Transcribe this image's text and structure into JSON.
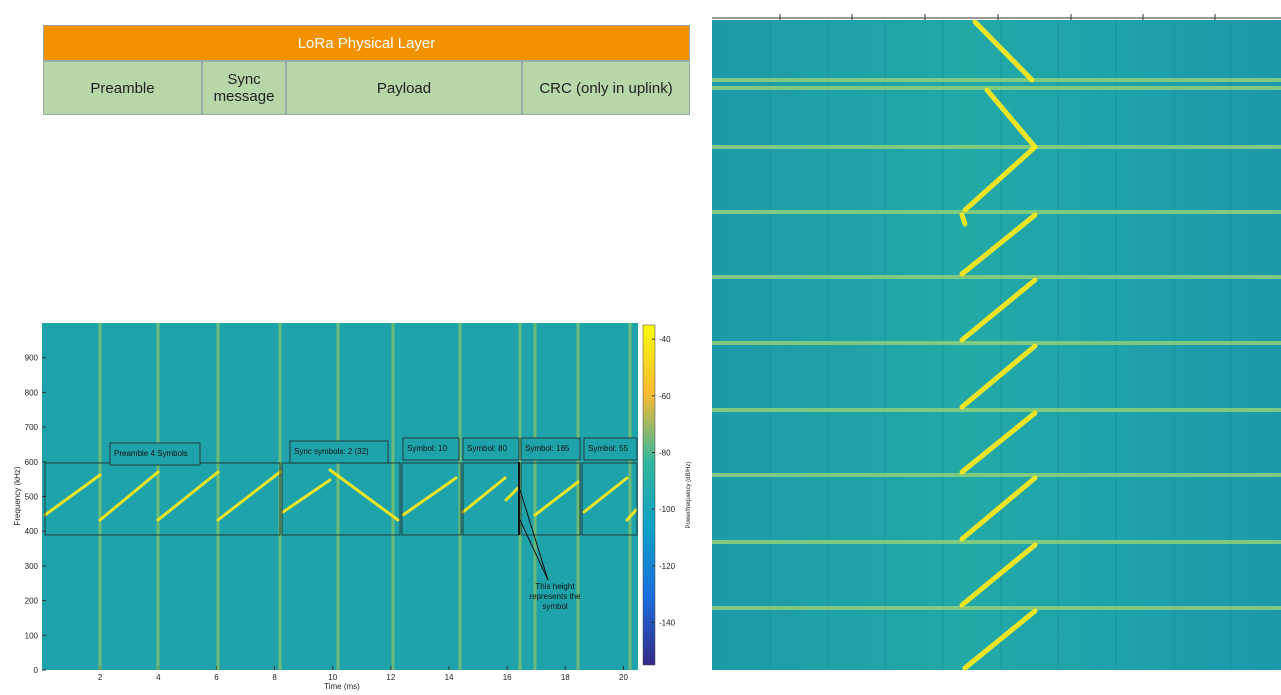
{
  "table": {
    "title": "LoRa Physical Layer",
    "cells": [
      "Preamble",
      "Sync message",
      "Payload",
      "CRC (only in uplink)"
    ]
  },
  "chart_data": {
    "type": "spectrogram",
    "xlabel": "Time (ms)",
    "ylabel": "Frequency (kHz)",
    "xlim": [
      0,
      20.5
    ],
    "xticks": [
      2,
      4,
      6,
      8,
      10,
      12,
      14,
      16,
      18,
      20
    ],
    "ylim": [
      0,
      1000
    ],
    "yticks": [
      0,
      100,
      200,
      300,
      400,
      500,
      600,
      700,
      800,
      900
    ],
    "colorbar": {
      "label": "Power/frequency (dB/Hz)",
      "lim": [
        -155,
        -35
      ],
      "ticks": [
        -140,
        -120,
        -100,
        -80,
        -60,
        -40
      ]
    },
    "annotations": [
      "Preamble 4 Symbols",
      "Sync symbols: 2 (32)",
      "Symbol: 10",
      "Symbol: 80",
      "Symbol: 185",
      "Symbol: 55"
    ],
    "callout": "This height represents the symbol"
  }
}
